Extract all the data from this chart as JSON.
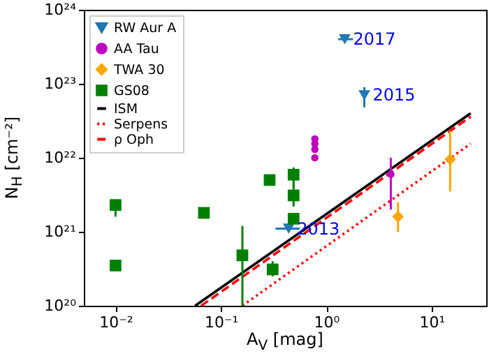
{
  "chart_data": {
    "type": "scatter",
    "xlabel": "A$_{V}$ [mag]",
    "ylabel": "N$_{H}$ [cm⁻²]",
    "log": "xy",
    "legend": "top left",
    "grid": false,
    "xlim": [
      0.005,
      33
    ],
    "ylim": [
      1e+20,
      1e+24
    ],
    "xticks": [
      {
        "value": 0.01,
        "label": "10⁻²"
      },
      {
        "value": 0.1,
        "label": "10⁻¹"
      },
      {
        "value": 1,
        "label": "10⁰"
      },
      {
        "value": 10,
        "label": "10¹"
      }
    ],
    "yticks": [
      {
        "value": 1e+20,
        "label": "10²⁰"
      },
      {
        "value": 1e+21,
        "label": "10²¹"
      },
      {
        "value": 1e+22,
        "label": "10²²"
      },
      {
        "value": 1e+23,
        "label": "10²³"
      },
      {
        "value": 1e+24,
        "label": "10²⁴"
      }
    ],
    "series": [
      {
        "name": "RW Aur A",
        "marker": "triangle",
        "color": "#1f77b4",
        "x": [
          1.5,
          2.3,
          0.44
        ],
        "values": [
          4e+23,
          7e+22,
          1.1e+21
        ],
        "errors": [
          null,
          [
            4.8e+22,
            9e+22
          ],
          null
        ],
        "xerrors": [
          [
            1.3,
            1.8
          ],
          null,
          [
            0.33,
            0.56
          ]
        ]
      },
      {
        "name": "AA Tau",
        "marker": "circle",
        "color": "#bf00bf",
        "x": [
          0.78,
          0.78,
          0.78,
          0.78,
          4.1
        ],
        "values": [
          1.8e+22,
          1.55e+22,
          1.3e+22,
          1e+22,
          6e+21
        ],
        "errors": [
          null,
          null,
          null,
          null,
          [
            2e+21,
            1e+22
          ]
        ]
      },
      {
        "name": "TWA 30",
        "marker": "diamond",
        "color": "#ffa500",
        "x": [
          15,
          4.8
        ],
        "values": [
          9.5e+21,
          1.6e+21
        ],
        "errors": [
          [
            3.5e+21,
            2.3e+22
          ],
          [
            1e+21,
            2.5e+21
          ]
        ]
      },
      {
        "name": "GS08",
        "marker": "square",
        "color": "#008000",
        "x": [
          0.01,
          0.01,
          0.069,
          0.16,
          0.31,
          0.49,
          0.49,
          0.49,
          0.29
        ],
        "values": [
          2.3e+21,
          3.5e+20,
          1.8e+21,
          4.8e+20,
          3.1e+20,
          1.5e+21,
          3.1e+21,
          5.9e+21,
          5e+21
        ],
        "errors": [
          [
            1.6e+21,
            2.3e+21
          ],
          null,
          null,
          [
            1e+20,
            1.2e+21
          ],
          [
            2.5e+20,
            4e+20
          ],
          null,
          [
            2.2e+21,
            4.5e+21
          ],
          [
            4e+21,
            7.4e+21
          ],
          null
        ]
      },
      {
        "name": "ISM",
        "type": "line",
        "marker": "none",
        "line_style": "solid",
        "color": "#000000",
        "x": [
          0.057,
          23.5
        ],
        "values": [
          1e+20,
          4e+22
        ]
      },
      {
        "name": "Serpens",
        "type": "line",
        "marker": "none",
        "line_style": "dotted",
        "color": "#ff0000",
        "x": [
          0.16,
          23.5
        ],
        "values": [
          1e+20,
          1.55e+22
        ]
      },
      {
        "name": "ρ Oph",
        "type": "line",
        "marker": "none",
        "line_style": "dashed",
        "color": "#ff0000",
        "x": [
          0.065,
          23.5
        ],
        "values": [
          1e+20,
          3.6e+22
        ]
      }
    ],
    "annotations": [
      {
        "text": "2017",
        "x": 1.5,
        "y": 4e+23
      },
      {
        "text": "2015",
        "x": 2.3,
        "y": 7e+22
      },
      {
        "text": "2013",
        "x": 0.44,
        "y": 1.1e+21
      }
    ]
  }
}
